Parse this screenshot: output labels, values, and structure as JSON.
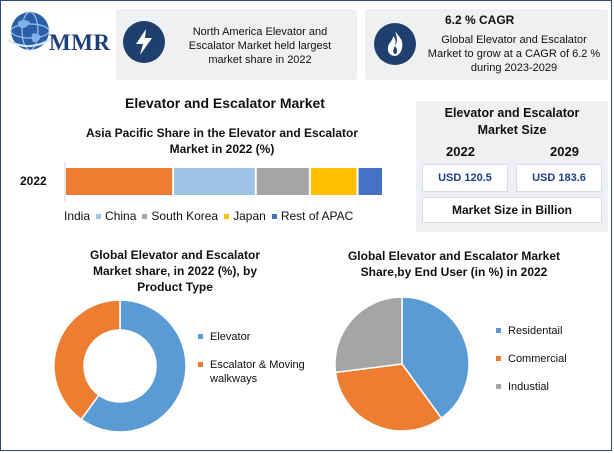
{
  "brand": {
    "logo_text": "MMR"
  },
  "cards": {
    "left": {
      "text": "North America Elevator and Escalator Market held largest market share in 2022"
    },
    "right": {
      "cagr": "6.2 % CAGR",
      "text": "Global Elevator and Escalator Market to grow at a CAGR of 6.2 % during 2023-2029"
    }
  },
  "colors": {
    "accent_dark": "#1f3f6e",
    "panel_bg": "#eef0f2"
  },
  "icons": {
    "left_card": "lightning-icon",
    "right_card": "flame-icon",
    "logo": "globe-icon"
  },
  "main_title": "Elevator and Escalator Market",
  "market_size": {
    "title": "Elevator and Escalator Market Size",
    "year_a": "2022",
    "year_b": "2029",
    "value_a": "USD 120.5",
    "value_b": "USD 183.6",
    "footnote": "Market Size in Billion"
  },
  "chart_data": [
    {
      "type": "bar",
      "orientation": "horizontal-stacked",
      "title": "Asia Pacific Share in the Elevator and Escalator Market in 2022 (%)",
      "categories": [
        "2022"
      ],
      "series": [
        {
          "name": "India",
          "color": "#ed7d31",
          "values": [
            34
          ]
        },
        {
          "name": "China",
          "color": "#9dc3e6",
          "values": [
            26
          ]
        },
        {
          "name": "South Korea",
          "color": "#a5a5a5",
          "values": [
            17
          ]
        },
        {
          "name": "Japan",
          "color": "#ffc000",
          "values": [
            15
          ]
        },
        {
          "name": "Rest of APAC",
          "color": "#4472c4",
          "values": [
            8
          ]
        }
      ],
      "legend": "bottom"
    },
    {
      "type": "pie",
      "variant": "donut",
      "title": "Global Elevator and Escalator Market share, in 2022 (%), by Product Type",
      "slices": [
        {
          "label": "Elevator",
          "value": 60,
          "color": "#5b9bd5"
        },
        {
          "label": "Escalator & Moving walkways",
          "value": 40,
          "color": "#ed7d31"
        }
      ],
      "legend": "right"
    },
    {
      "type": "pie",
      "title": "Global Elevator and Escalator Market Share,by End User (in %) in 2022",
      "slices": [
        {
          "label": "Residentail",
          "value": 40,
          "color": "#5b9bd5"
        },
        {
          "label": "Commercial",
          "value": 33,
          "color": "#ed7d31"
        },
        {
          "label": "Industial",
          "value": 27,
          "color": "#a5a5a5"
        }
      ],
      "legend": "right"
    }
  ]
}
